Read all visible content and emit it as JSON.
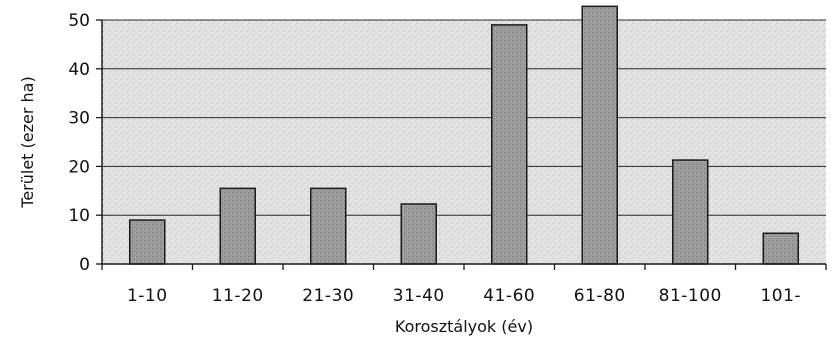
{
  "chart_data": {
    "type": "bar",
    "title": "",
    "xlabel": "Korosztályok (év)",
    "ylabel": "Terület (ezer ha)",
    "categories": [
      "1-10",
      "11-20",
      "21-30",
      "31-40",
      "41-60",
      "61-80",
      "81-100",
      "101-"
    ],
    "values": [
      9,
      15.5,
      15.5,
      12.3,
      49,
      52.8,
      21.3,
      6.3
    ],
    "ylim": [
      0,
      50
    ],
    "yticks": [
      0,
      10,
      20,
      30,
      40,
      50
    ],
    "grid": true,
    "legend": "none",
    "colors": {
      "bar_fill": "#9a9a9a",
      "bar_stroke": "#1a1a1a",
      "plot_background": "#e2e2e2",
      "gridline": "#2a2a2a",
      "axis": "#1a1a1a"
    }
  }
}
